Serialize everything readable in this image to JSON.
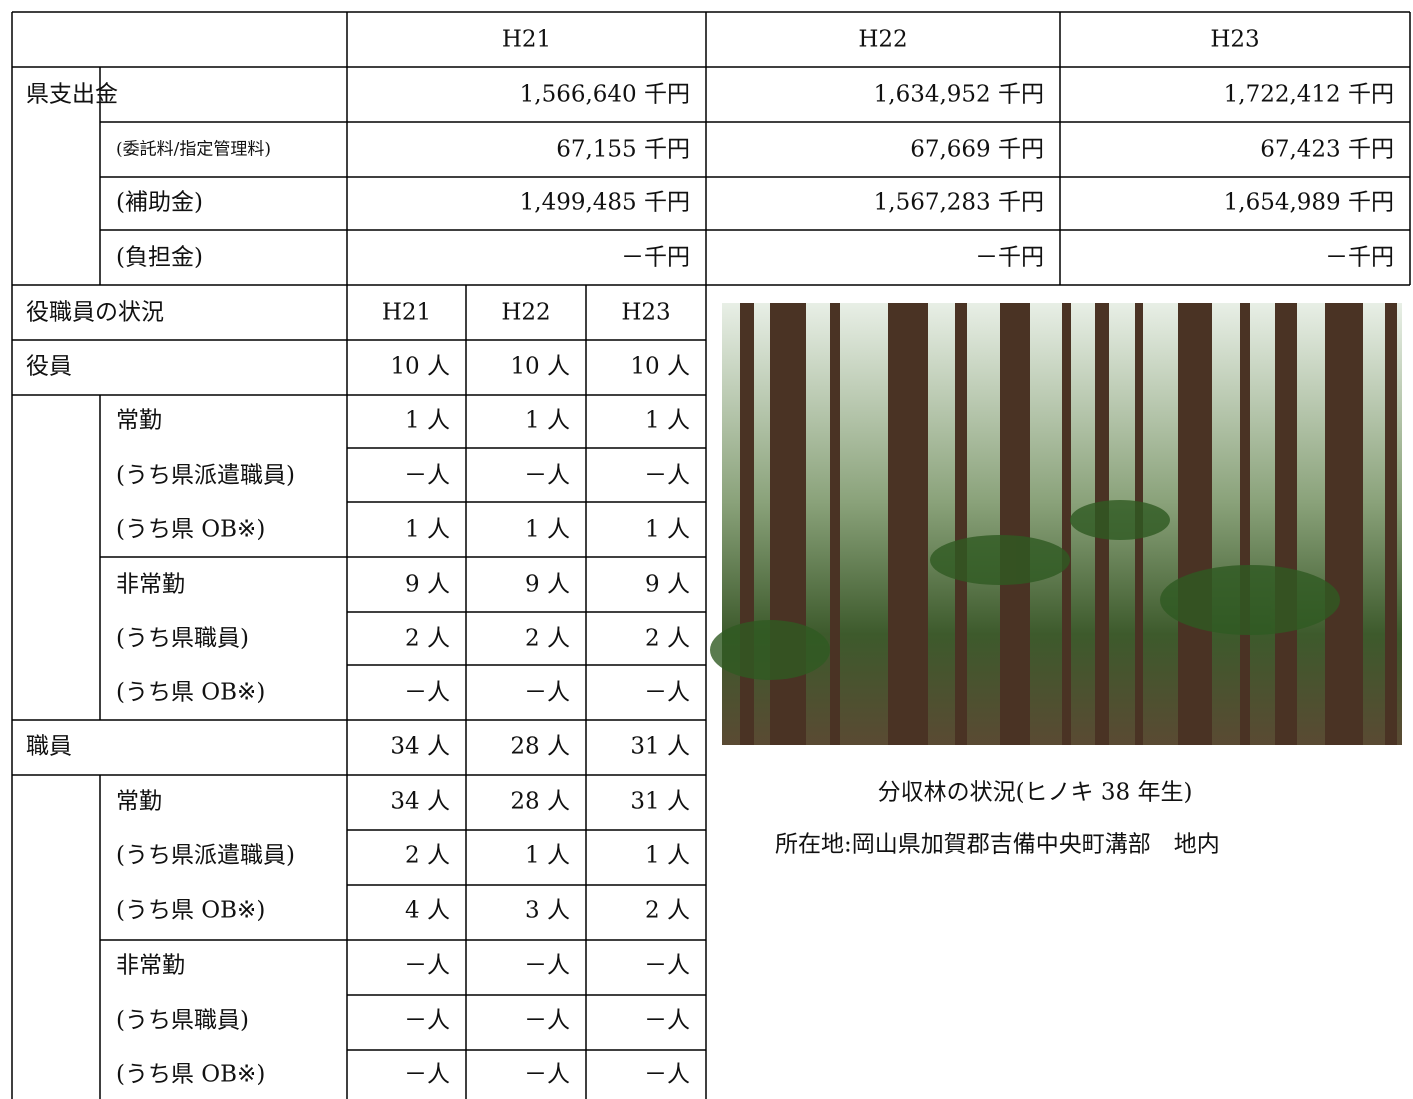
{
  "finance": {
    "header": [
      "H21",
      "H22",
      "H23"
    ],
    "rows": [
      {
        "label": "県支出金",
        "values": [
          "1,566,640 千円",
          "1,634,952 千円",
          "1,722,412 千円"
        ]
      },
      {
        "label": "(委託料/指定管理料)",
        "values": [
          "67,155 千円",
          "67,669 千円",
          "67,423 千円"
        ]
      },
      {
        "label": "(補助金)",
        "values": [
          "1,499,485 千円",
          "1,567,283 千円",
          "1,654,989 千円"
        ]
      },
      {
        "label": "(負担金)",
        "values": [
          "－千円",
          "－千円",
          "－千円"
        ]
      }
    ]
  },
  "staff": {
    "header_label": "役職員の状況",
    "header": [
      "H21",
      "H22",
      "H23"
    ],
    "rows": [
      {
        "label": "役員",
        "values": [
          "10 人",
          "10 人",
          "10 人"
        ]
      },
      {
        "label": "常勤",
        "values": [
          "1 人",
          "1 人",
          "1 人"
        ]
      },
      {
        "label": "(うち県派遣職員)",
        "values": [
          "－人",
          "－人",
          "－人"
        ]
      },
      {
        "label": "(うち県 OB※)",
        "values": [
          "1 人",
          "1 人",
          "1 人"
        ]
      },
      {
        "label": "非常勤",
        "values": [
          "9 人",
          "9 人",
          "9 人"
        ]
      },
      {
        "label": "(うち県職員)",
        "values": [
          "2 人",
          "2 人",
          "2 人"
        ]
      },
      {
        "label": "(うち県 OB※)",
        "values": [
          "－人",
          "－人",
          "－人"
        ]
      },
      {
        "label": "職員",
        "values": [
          "34 人",
          "28 人",
          "31 人"
        ]
      },
      {
        "label": "常勤",
        "values": [
          "34 人",
          "28 人",
          "31 人"
        ]
      },
      {
        "label": "(うち県派遣職員)",
        "values": [
          "2 人",
          "1 人",
          "1 人"
        ]
      },
      {
        "label": "(うち県 OB※)",
        "values": [
          "4 人",
          "3 人",
          "2 人"
        ]
      },
      {
        "label": "非常勤",
        "values": [
          "－人",
          "－人",
          "－人"
        ]
      },
      {
        "label": "(うち県職員)",
        "values": [
          "－人",
          "－人",
          "－人"
        ]
      },
      {
        "label": "(うち県 OB※)",
        "values": [
          "－人",
          "－人",
          "－人"
        ]
      }
    ]
  },
  "photo": {
    "caption": "分収林の状況(ヒノキ 38 年生)",
    "location": "所在地:岡山県加賀郡吉備中央町溝部　地内"
  }
}
